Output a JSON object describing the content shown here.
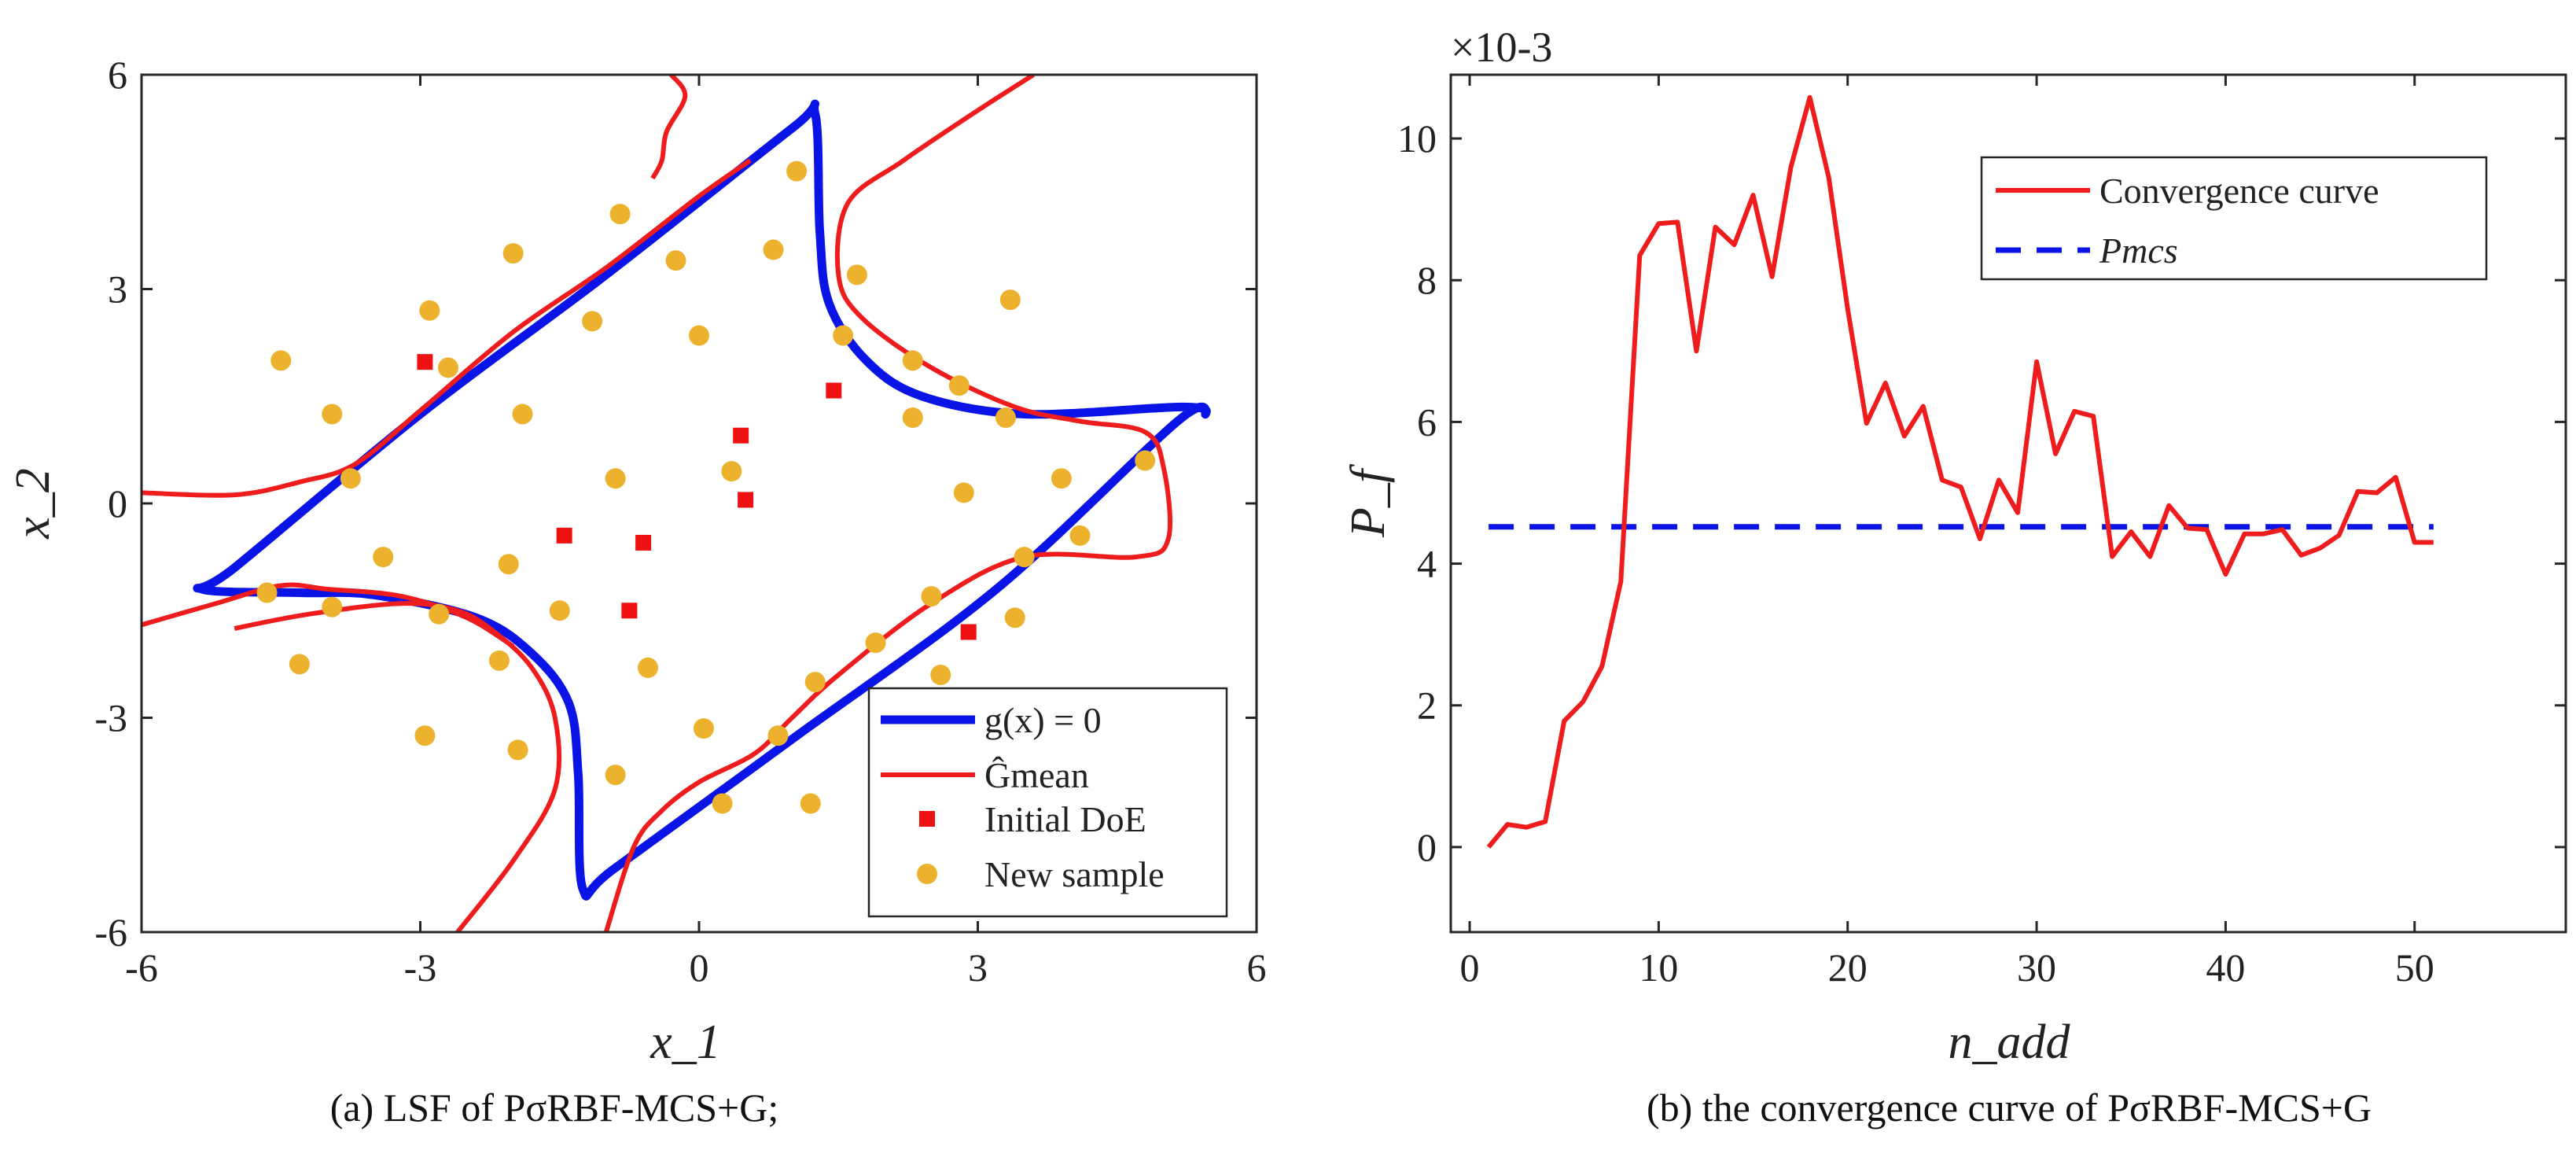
{
  "chart_data": [
    {
      "type": "scatter",
      "title": "",
      "xlabel": "x_1",
      "ylabel": "x_2",
      "xlim": [
        -6,
        6
      ],
      "ylim": [
        -6,
        6
      ],
      "xticks": [
        -6,
        -3,
        0,
        3,
        6
      ],
      "xtick_labels": [
        "-6",
        "-3",
        "0",
        "3",
        "6"
      ],
      "yticks": [
        -6,
        -3,
        0,
        3,
        6
      ],
      "ytick_labels": [
        "-6",
        "-3",
        "0",
        "3",
        "6"
      ],
      "caption": "(a) LSF of PσRBF-MCS+G;",
      "legend": [
        "g(x) = 0",
        "Ĝmean",
        "Initial DoE",
        "New sample"
      ],
      "colors": {
        "true_lsf": "#0a14e6",
        "surrogate": "#ee1c1c",
        "initial": "#ee1111",
        "new": "#ecb22e"
      },
      "g_true": [
        [
          1.25,
          5.45
        ],
        [
          1.0,
          5.25
        ],
        [
          -1.0,
          3.2
        ],
        [
          -3.0,
          1.25
        ],
        [
          -5.0,
          -0.9
        ],
        [
          -5.35,
          -1.2
        ],
        [
          -4.3,
          -1.25
        ],
        [
          -3.5,
          -1.28
        ],
        [
          -2.4,
          -1.6
        ],
        [
          -1.8,
          -2.1
        ],
        [
          -1.4,
          -2.8
        ],
        [
          -1.3,
          -3.8
        ],
        [
          -1.25,
          -5.4
        ],
        [
          -0.9,
          -5.1
        ],
        [
          1.0,
          -3.3
        ],
        [
          3.2,
          -1.2
        ],
        [
          5.15,
          1.15
        ],
        [
          5.45,
          1.25
        ],
        [
          5.2,
          1.35
        ],
        [
          3.5,
          1.25
        ],
        [
          2.4,
          1.5
        ],
        [
          1.8,
          2.0
        ],
        [
          1.4,
          2.8
        ],
        [
          1.3,
          3.8
        ]
      ],
      "g_mean": [
        [
          [
            -0.3,
            6.0
          ],
          [
            -0.15,
            5.7
          ],
          [
            -0.35,
            5.2
          ],
          [
            -0.4,
            4.8
          ],
          [
            -0.5,
            4.55
          ]
        ],
        [
          [
            -5.0,
            -1.75
          ],
          [
            -4.2,
            -1.55
          ],
          [
            -3.2,
            -1.4
          ],
          [
            -2.6,
            -1.5
          ],
          [
            -2.2,
            -1.8
          ],
          [
            -1.8,
            -2.3
          ],
          [
            -1.55,
            -3.0
          ],
          [
            -1.55,
            -4.0
          ],
          [
            -2.0,
            -5.0
          ],
          [
            -2.6,
            -6.0
          ]
        ],
        [
          [
            -6.0,
            -1.7
          ],
          [
            -5.2,
            -1.4
          ],
          [
            -4.5,
            -1.15
          ],
          [
            -4.0,
            -1.2
          ],
          [
            -3.2,
            -1.3
          ],
          [
            -2.5,
            -1.6
          ],
          [
            -2.0,
            -2.0
          ]
        ],
        [
          [
            -6.0,
            0.15
          ],
          [
            -5.0,
            0.12
          ],
          [
            -4.3,
            0.3
          ],
          [
            -3.7,
            0.55
          ],
          [
            -3.0,
            1.3
          ],
          [
            -2.0,
            2.4
          ],
          [
            -1.0,
            3.3
          ],
          [
            0.0,
            4.3
          ],
          [
            0.55,
            4.8
          ]
        ],
        [
          [
            3.6,
            6.0
          ],
          [
            3.0,
            5.5
          ],
          [
            2.2,
            4.8
          ],
          [
            1.6,
            4.2
          ],
          [
            1.5,
            3.2
          ],
          [
            1.75,
            2.6
          ],
          [
            2.5,
            1.9
          ],
          [
            3.4,
            1.35
          ],
          [
            4.1,
            1.15
          ],
          [
            4.8,
            1.0
          ],
          [
            5.0,
            0.5
          ],
          [
            5.05,
            -0.5
          ],
          [
            4.7,
            -0.75
          ],
          [
            3.5,
            -0.75
          ],
          [
            2.5,
            -1.4
          ],
          [
            1.5,
            -2.4
          ],
          [
            1.0,
            -3.0
          ],
          [
            0.6,
            -3.5
          ],
          [
            0.0,
            -3.9
          ],
          [
            -0.4,
            -4.3
          ],
          [
            -0.7,
            -4.8
          ],
          [
            -1.0,
            -6.0
          ]
        ]
      ],
      "initial_doe": [
        [
          -2.95,
          1.98
        ],
        [
          1.45,
          1.58
        ],
        [
          0.45,
          0.95
        ],
        [
          0.5,
          0.05
        ],
        [
          -1.45,
          -0.45
        ],
        [
          -0.6,
          -0.55
        ],
        [
          -0.75,
          -1.5
        ],
        [
          2.9,
          -1.8
        ]
      ],
      "new_samples": [
        [
          -4.5,
          2.0
        ],
        [
          -2.7,
          1.9
        ],
        [
          -3.95,
          1.25
        ],
        [
          -3.75,
          0.35
        ],
        [
          -3.4,
          -0.75
        ],
        [
          -4.65,
          -1.25
        ],
        [
          -3.95,
          -1.45
        ],
        [
          -4.3,
          -2.25
        ],
        [
          -2.8,
          -1.55
        ],
        [
          -2.15,
          -2.2
        ],
        [
          -2.95,
          -3.25
        ],
        [
          -1.95,
          -3.45
        ],
        [
          -2.05,
          -0.85
        ],
        [
          -1.5,
          -1.5
        ],
        [
          -0.9,
          -3.8
        ],
        [
          -0.55,
          -2.3
        ],
        [
          -0.9,
          0.35
        ],
        [
          -1.9,
          1.25
        ],
        [
          -1.15,
          2.55
        ],
        [
          -2.0,
          3.5
        ],
        [
          -2.9,
          2.7
        ],
        [
          -0.85,
          4.05
        ],
        [
          -0.25,
          3.4
        ],
        [
          0.0,
          2.35
        ],
        [
          0.8,
          3.55
        ],
        [
          1.05,
          4.65
        ],
        [
          1.7,
          3.2
        ],
        [
          1.55,
          2.35
        ],
        [
          2.3,
          2.0
        ],
        [
          2.3,
          1.2
        ],
        [
          2.8,
          1.65
        ],
        [
          3.35,
          2.85
        ],
        [
          3.3,
          1.2
        ],
        [
          2.85,
          0.15
        ],
        [
          3.9,
          0.35
        ],
        [
          4.1,
          -0.45
        ],
        [
          4.8,
          0.6
        ],
        [
          3.5,
          -0.75
        ],
        [
          3.4,
          -1.6
        ],
        [
          2.5,
          -1.3
        ],
        [
          2.6,
          -2.4
        ],
        [
          1.9,
          -1.95
        ],
        [
          1.25,
          -2.5
        ],
        [
          0.85,
          -3.25
        ],
        [
          0.05,
          -3.15
        ],
        [
          0.25,
          -4.2
        ],
        [
          1.2,
          -4.2
        ],
        [
          0.35,
          0.45
        ]
      ]
    },
    {
      "type": "line",
      "title": "",
      "xlabel": "n_add",
      "ylabel": "P_f",
      "xlim": [
        -1,
        58
      ],
      "ylim": [
        -1.2,
        10.9
      ],
      "exponent_label": "×10-3",
      "xticks": [
        0,
        10,
        20,
        30,
        40,
        50
      ],
      "xtick_labels": [
        "0",
        "10",
        "20",
        "30",
        "40",
        "50"
      ],
      "yticks": [
        0,
        2,
        4,
        6,
        8,
        10
      ],
      "ytick_labels": [
        "0",
        "2",
        "4",
        "6",
        "8",
        "10"
      ],
      "caption": "(b) the convergence curve of PσRBF-MCS+G",
      "legend": [
        "Convergence curve",
        "Pmcs"
      ],
      "colors": {
        "convergence": "#ee1c1c",
        "mcs": "#0a14e6"
      },
      "series": [
        {
          "name": "Convergence curve",
          "x": [
            1,
            2,
            3,
            4,
            5,
            6,
            7,
            8,
            9,
            10,
            11,
            12,
            13,
            14,
            15,
            16,
            17,
            18,
            19,
            20,
            21,
            22,
            23,
            24,
            25,
            26,
            27,
            28,
            29,
            30,
            31,
            32,
            33,
            34,
            35,
            36,
            37,
            38,
            39,
            40,
            41,
            42,
            43,
            44,
            45,
            46,
            47,
            48,
            49,
            50,
            51
          ],
          "y": [
            0.0,
            0.32,
            0.28,
            0.36,
            1.78,
            2.05,
            2.55,
            3.75,
            8.35,
            8.8,
            8.82,
            7.0,
            8.75,
            8.5,
            9.2,
            8.05,
            9.6,
            10.58,
            9.45,
            7.6,
            5.98,
            6.55,
            5.8,
            6.22,
            5.18,
            5.08,
            4.35,
            5.18,
            4.72,
            6.85,
            5.55,
            6.15,
            6.08,
            4.1,
            4.45,
            4.1,
            4.82,
            4.5,
            4.48,
            3.85,
            4.42,
            4.42,
            4.48,
            4.12,
            4.22,
            4.4,
            5.02,
            5.0,
            5.22,
            4.3,
            4.3
          ]
        },
        {
          "name": "Pmcs",
          "x": [
            1,
            51
          ],
          "y": [
            4.52,
            4.52
          ]
        }
      ]
    }
  ]
}
